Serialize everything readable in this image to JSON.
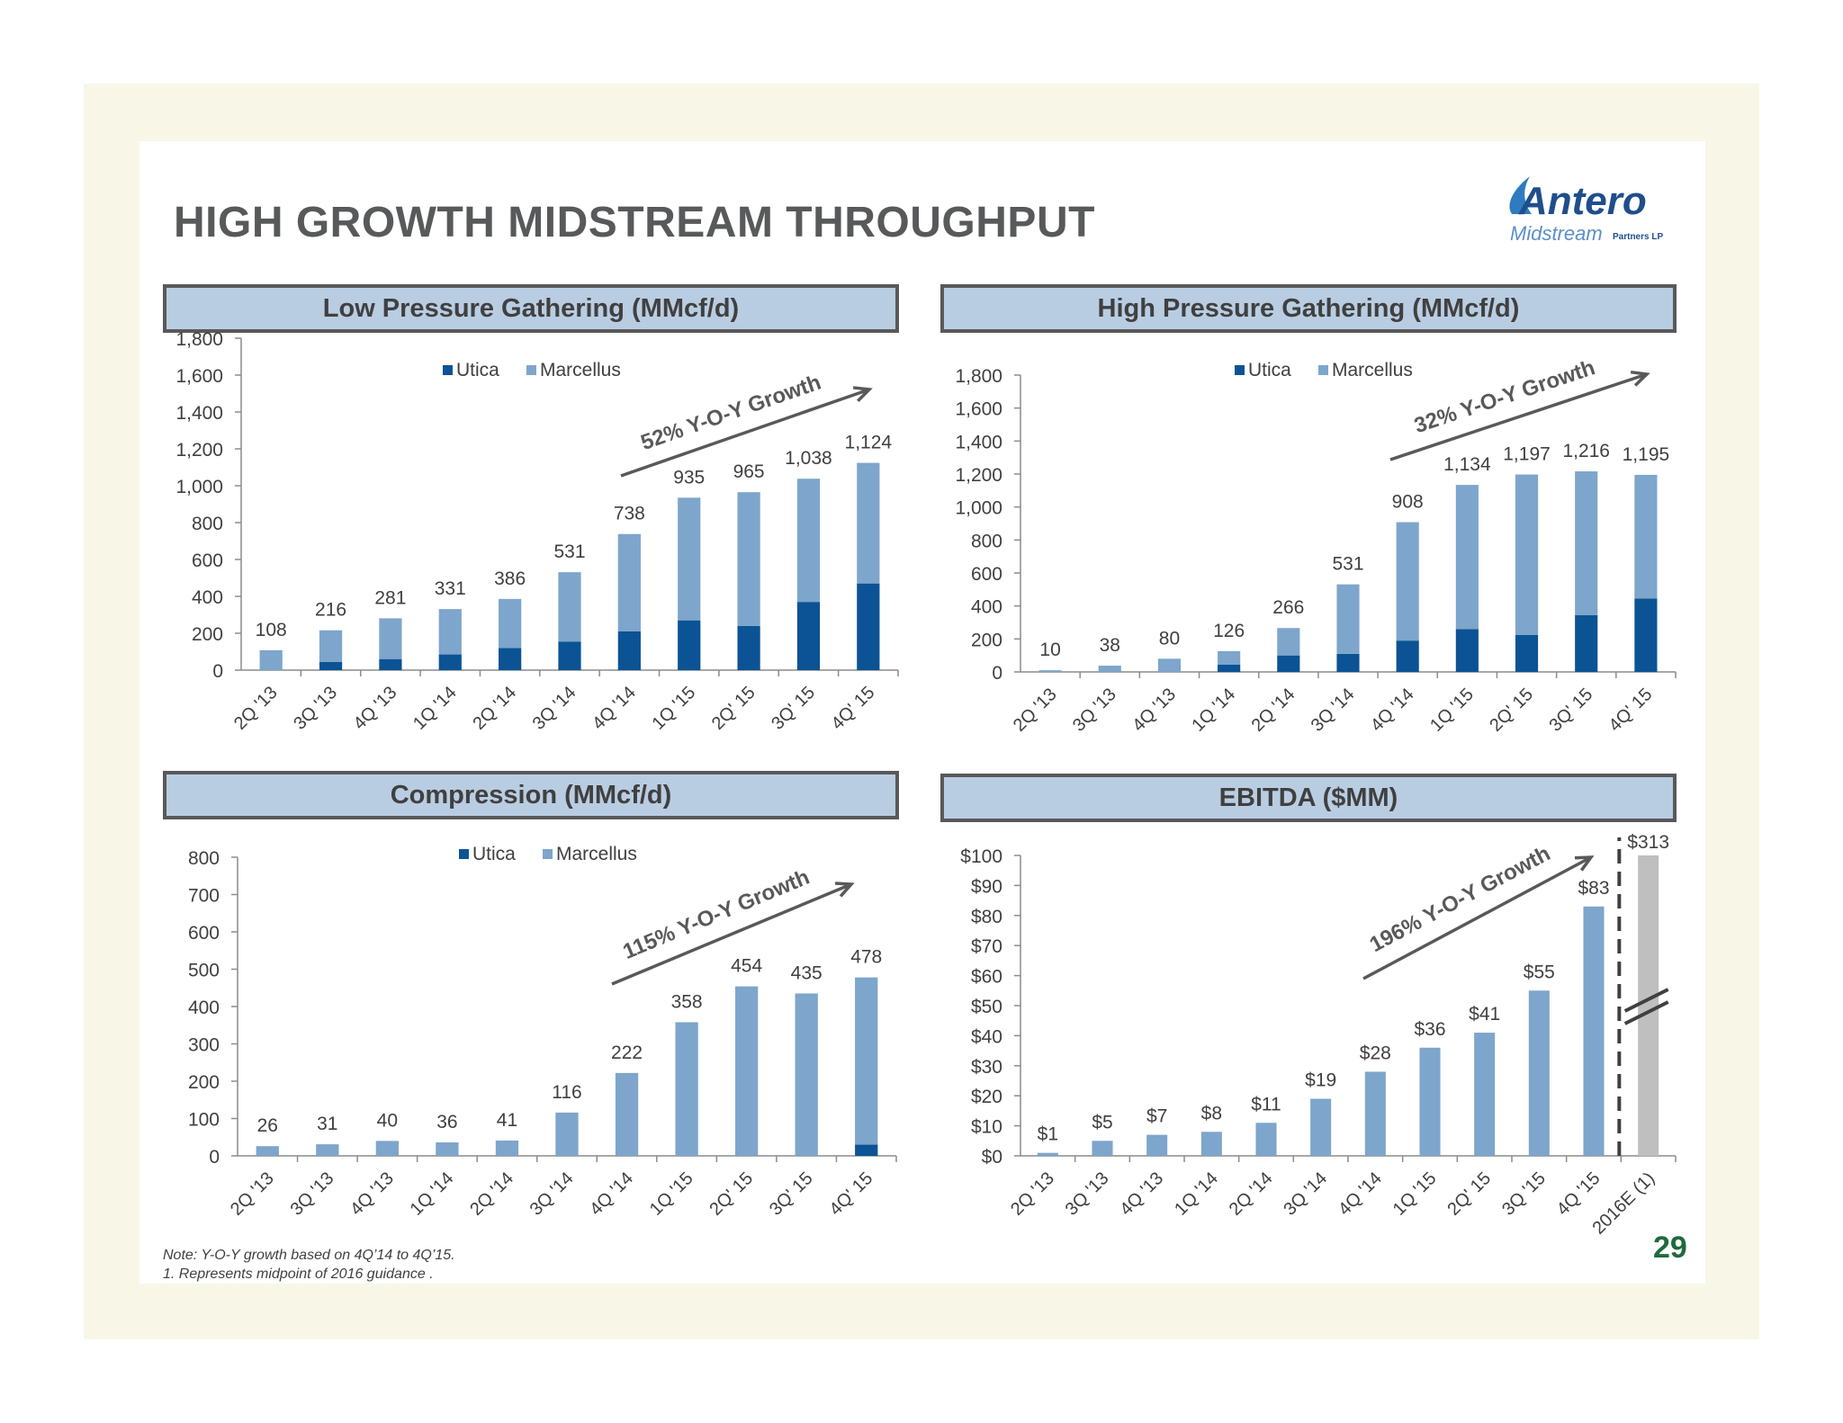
{
  "title": "HIGH GROWTH MIDSTREAM THROUGHPUT",
  "logo": {
    "name": "Antero",
    "sub": "Midstream",
    "suffix": "Partners LP"
  },
  "colors": {
    "utica": "#0b5394",
    "marcellus": "#7ea5cb",
    "estimate": "#bfbfbf",
    "arrow": "#595959",
    "header_bg": "#b9cde2",
    "page_num": "#1f6a3d"
  },
  "footnote": {
    "line1": "Note: Y-O-Y growth based on 4Q’14 to 4Q’15.",
    "line2": "1.  Represents midpoint of 2016 guidance ."
  },
  "page_number": "29",
  "chart_data": [
    {
      "type": "bar",
      "stacked": true,
      "title": "Low Pressure Gathering (MMcf/d)",
      "categories": [
        "2Q '13",
        "3Q '13",
        "4Q '13",
        "1Q '14",
        "2Q '14",
        "3Q '14",
        "4Q '14",
        "1Q '15",
        "2Q' 15",
        "3Q' 15",
        "4Q' 15"
      ],
      "series": [
        {
          "name": "Utica",
          "values": [
            0,
            45,
            60,
            85,
            120,
            155,
            210,
            270,
            240,
            370,
            470
          ]
        },
        {
          "name": "Marcellus",
          "values": [
            108,
            171,
            221,
            246,
            266,
            376,
            528,
            665,
            725,
            668,
            654
          ]
        }
      ],
      "totals": [
        "108",
        "216",
        "281",
        "331",
        "386",
        "531",
        "738",
        "935",
        "965",
        "1,038",
        "1,124"
      ],
      "ylim": [
        0,
        1800
      ],
      "yticks": [
        "0",
        "200",
        "400",
        "600",
        "800",
        "1,000",
        "1,200",
        "1,400",
        "1,600",
        "1,800"
      ],
      "legend": [
        "Utica",
        "Marcellus"
      ],
      "annotation": "52% Y-O-Y Growth"
    },
    {
      "type": "bar",
      "stacked": true,
      "title": "High Pressure Gathering (MMcf/d)",
      "categories": [
        "2Q '13",
        "3Q '13",
        "4Q '13",
        "1Q '14",
        "2Q '14",
        "3Q '14",
        "4Q '14",
        "1Q '15",
        "2Q' 15",
        "3Q' 15",
        "4Q' 15"
      ],
      "series": [
        {
          "name": "Utica",
          "values": [
            0,
            0,
            0,
            45,
            100,
            110,
            190,
            260,
            225,
            345,
            445
          ]
        },
        {
          "name": "Marcellus",
          "values": [
            10,
            38,
            80,
            81,
            166,
            421,
            718,
            874,
            972,
            871,
            750
          ]
        }
      ],
      "totals": [
        "10",
        "38",
        "80",
        "126",
        "266",
        "531",
        "908",
        "1,134",
        "1,197",
        "1,216",
        "1,195"
      ],
      "ylim": [
        0,
        1800
      ],
      "yticks": [
        "0",
        "200",
        "400",
        "600",
        "800",
        "1,000",
        "1,200",
        "1,400",
        "1,600",
        "1,800"
      ],
      "legend": [
        "Utica",
        "Marcellus"
      ],
      "annotation": "32% Y-O-Y Growth"
    },
    {
      "type": "bar",
      "stacked": true,
      "title": "Compression (MMcf/d)",
      "categories": [
        "2Q '13",
        "3Q '13",
        "4Q '13",
        "1Q '14",
        "2Q '14",
        "3Q '14",
        "4Q '14",
        "1Q '15",
        "2Q' 15",
        "3Q' 15",
        "4Q' 15"
      ],
      "series": [
        {
          "name": "Utica",
          "values": [
            0,
            0,
            0,
            0,
            0,
            0,
            0,
            0,
            0,
            0,
            30
          ]
        },
        {
          "name": "Marcellus",
          "values": [
            26,
            31,
            40,
            36,
            41,
            116,
            222,
            358,
            454,
            435,
            448
          ]
        }
      ],
      "totals": [
        "26",
        "31",
        "40",
        "36",
        "41",
        "116",
        "222",
        "358",
        "454",
        "435",
        "478"
      ],
      "ylim": [
        0,
        800
      ],
      "yticks": [
        "0",
        "100",
        "200",
        "300",
        "400",
        "500",
        "600",
        "700",
        "800"
      ],
      "legend": [
        "Utica",
        "Marcellus"
      ],
      "annotation": "115% Y-O-Y Growth"
    },
    {
      "type": "bar",
      "title": "EBITDA ($MM)",
      "categories": [
        "2Q '13",
        "3Q '13",
        "4Q '13",
        "1Q '14",
        "2Q '14",
        "3Q '14",
        "4Q '14",
        "1Q '15",
        "2Q' 15",
        "3Q '15",
        "4Q '15",
        "2016E (1)"
      ],
      "values": [
        1,
        5,
        7,
        8,
        11,
        19,
        28,
        36,
        41,
        55,
        83,
        313
      ],
      "labels": [
        "$1",
        "$5",
        "$7",
        "$8",
        "$11",
        "$19",
        "$28",
        "$36",
        "$41",
        "$55",
        "$83",
        "$313"
      ],
      "ylim": [
        0,
        100
      ],
      "yticks": [
        "$0",
        "$10",
        "$20",
        "$30",
        "$40",
        "$50",
        "$60",
        "$70",
        "$80",
        "$90",
        "$100"
      ],
      "annotation": "196% Y-O-Y Growth",
      "axis_break": true
    }
  ]
}
